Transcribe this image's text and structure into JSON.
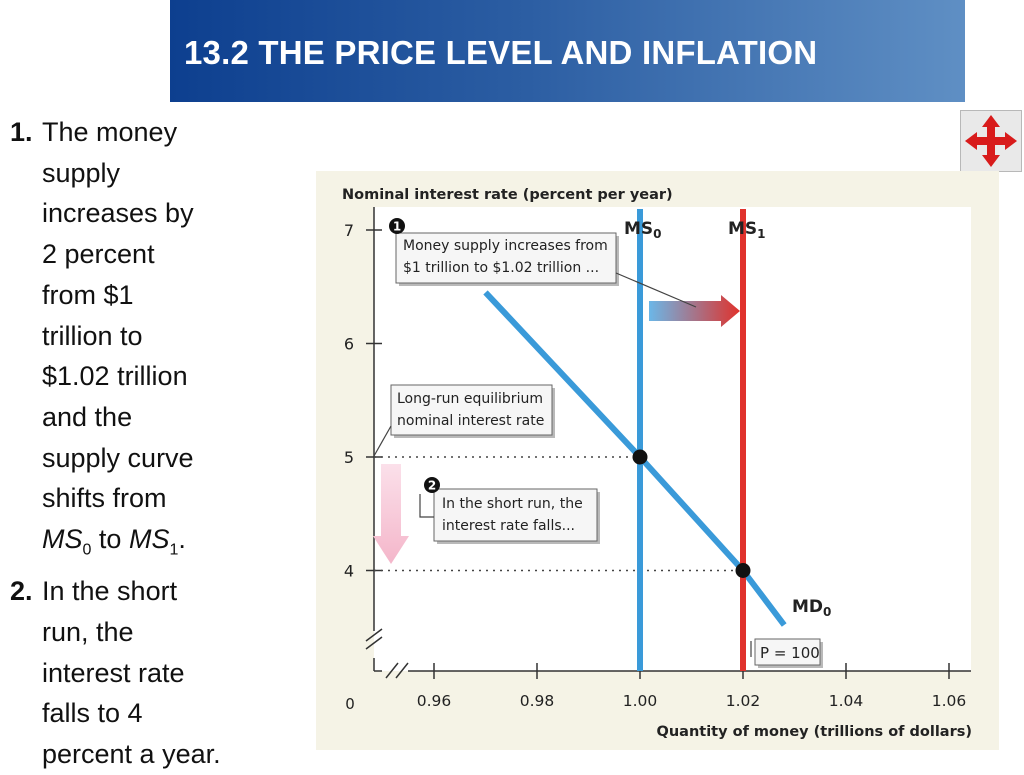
{
  "header": {
    "title": "13.2 THE PRICE LEVEL AND INFLATION"
  },
  "nav": {
    "icon": "move-arrows-icon"
  },
  "steps": [
    {
      "number": "1.",
      "lines": [
        "The money",
        "supply",
        "increases by",
        "2 percent",
        "from $1",
        "trillion to",
        "$1.02 trillion",
        "and the",
        "supply curve",
        "shifts from"
      ],
      "ms0_base": "MS",
      "ms0_sub": "0",
      "joiner": "to",
      "ms1_base": "MS",
      "ms1_sub": "1",
      "end": "."
    },
    {
      "number": "2.",
      "lines": [
        "In the short",
        "run, the",
        "interest rate",
        "falls to 4",
        "percent a year."
      ]
    }
  ],
  "chart_data": {
    "type": "line",
    "ylabel": "Nominal interest rate (percent per year)",
    "xlabel": "Quantity of money (trillions of dollars)",
    "origin_label": "0",
    "x_ticks": [
      "0.96",
      "0.98",
      "1.00",
      "1.02",
      "1.04",
      "1.06"
    ],
    "y_ticks": [
      "4",
      "5",
      "6",
      "7"
    ],
    "xlim": [
      0.95,
      1.06
    ],
    "ylim": [
      3.5,
      7
    ],
    "axis_break": true,
    "grid": false,
    "series": [
      {
        "name_base": "MD",
        "name_sub": "0",
        "kind": "demand",
        "color": "#3a9ad9",
        "points": [
          [
            0.97,
            6.45
          ],
          [
            1.0,
            5.0
          ],
          [
            1.02,
            4.0
          ],
          [
            1.028,
            3.52
          ]
        ]
      },
      {
        "name_base": "MS",
        "name_sub": "0",
        "kind": "supply",
        "color": "#3a9ad9",
        "x": 1.0
      },
      {
        "name_base": "MS",
        "name_sub": "1",
        "kind": "supply",
        "color": "#e0322c",
        "x": 1.02
      }
    ],
    "equilibria": [
      {
        "x": 1.0,
        "y": 5.0
      },
      {
        "x": 1.02,
        "y": 4.0
      }
    ],
    "annotations": {
      "step1_marker": "1",
      "step1_box": [
        "Money supply increases from",
        "$1 trillion to $1.02 trillion ..."
      ],
      "long_run_box": [
        "Long-run equilibrium",
        "nominal interest rate"
      ],
      "step2_marker": "2",
      "step2_box": [
        "In the short run, the",
        "interest rate falls..."
      ],
      "price_label": "P = 100"
    },
    "colors": {
      "background": "#f5f3e6",
      "plot_background": "#ffffff",
      "supply_shift_from": "#6bb7e8",
      "supply_shift_to": "#e0322c",
      "rate_fall_arrow": "#f4b6ca"
    }
  }
}
